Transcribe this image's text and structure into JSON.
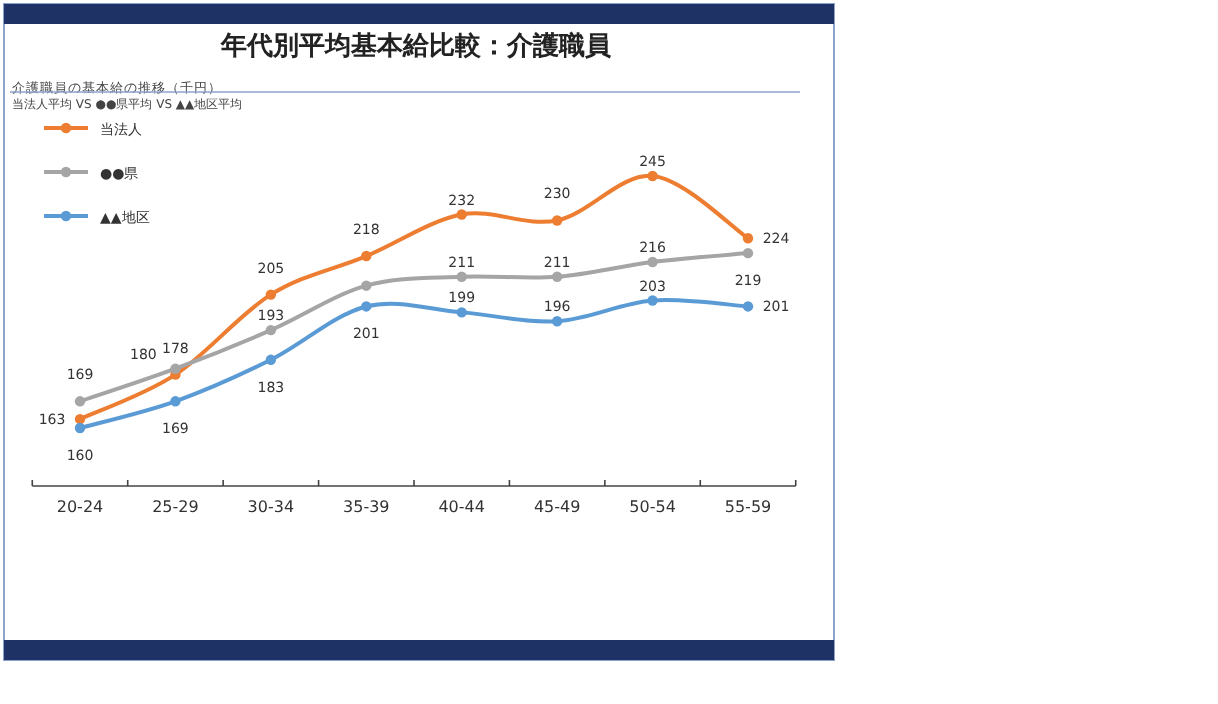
{
  "chart_data": {
    "type": "line",
    "title": "年代別平均基本給比較：介護職員",
    "subtitle": "介護職員の基本給の推移（千円）",
    "annotations": [
      "当法人平均 VS ●●県平均 VS ▲▲地区平均"
    ],
    "categories": [
      "20-24",
      "25-29",
      "30-34",
      "35-39",
      "40-44",
      "45-49",
      "50-54",
      "55-59"
    ],
    "series": [
      {
        "name": "当法人",
        "color": "#ed7d31",
        "values": [
          163,
          178,
          205,
          218,
          232,
          230,
          245,
          224
        ],
        "value_labels": [
          "163",
          "178",
          "205",
          "218",
          "232",
          "230",
          "245",
          "224"
        ]
      },
      {
        "name": "●●県",
        "color": "#a5a5a5",
        "values": [
          169,
          180,
          193,
          208,
          211,
          211,
          216,
          219
        ],
        "value_labels": [
          "169",
          "180",
          "193",
          null,
          "211",
          "211",
          "216",
          "219"
        ]
      },
      {
        "name": "▲▲地区",
        "color": "#5b9bd5",
        "values": [
          160,
          169,
          183,
          201,
          199,
          196,
          203,
          201
        ],
        "value_labels": [
          "160",
          "169",
          "183",
          "201",
          "199",
          "196",
          "203",
          "201"
        ]
      }
    ],
    "legend": "top left",
    "marker": "circle",
    "line_style": "solid",
    "grid": false
  }
}
